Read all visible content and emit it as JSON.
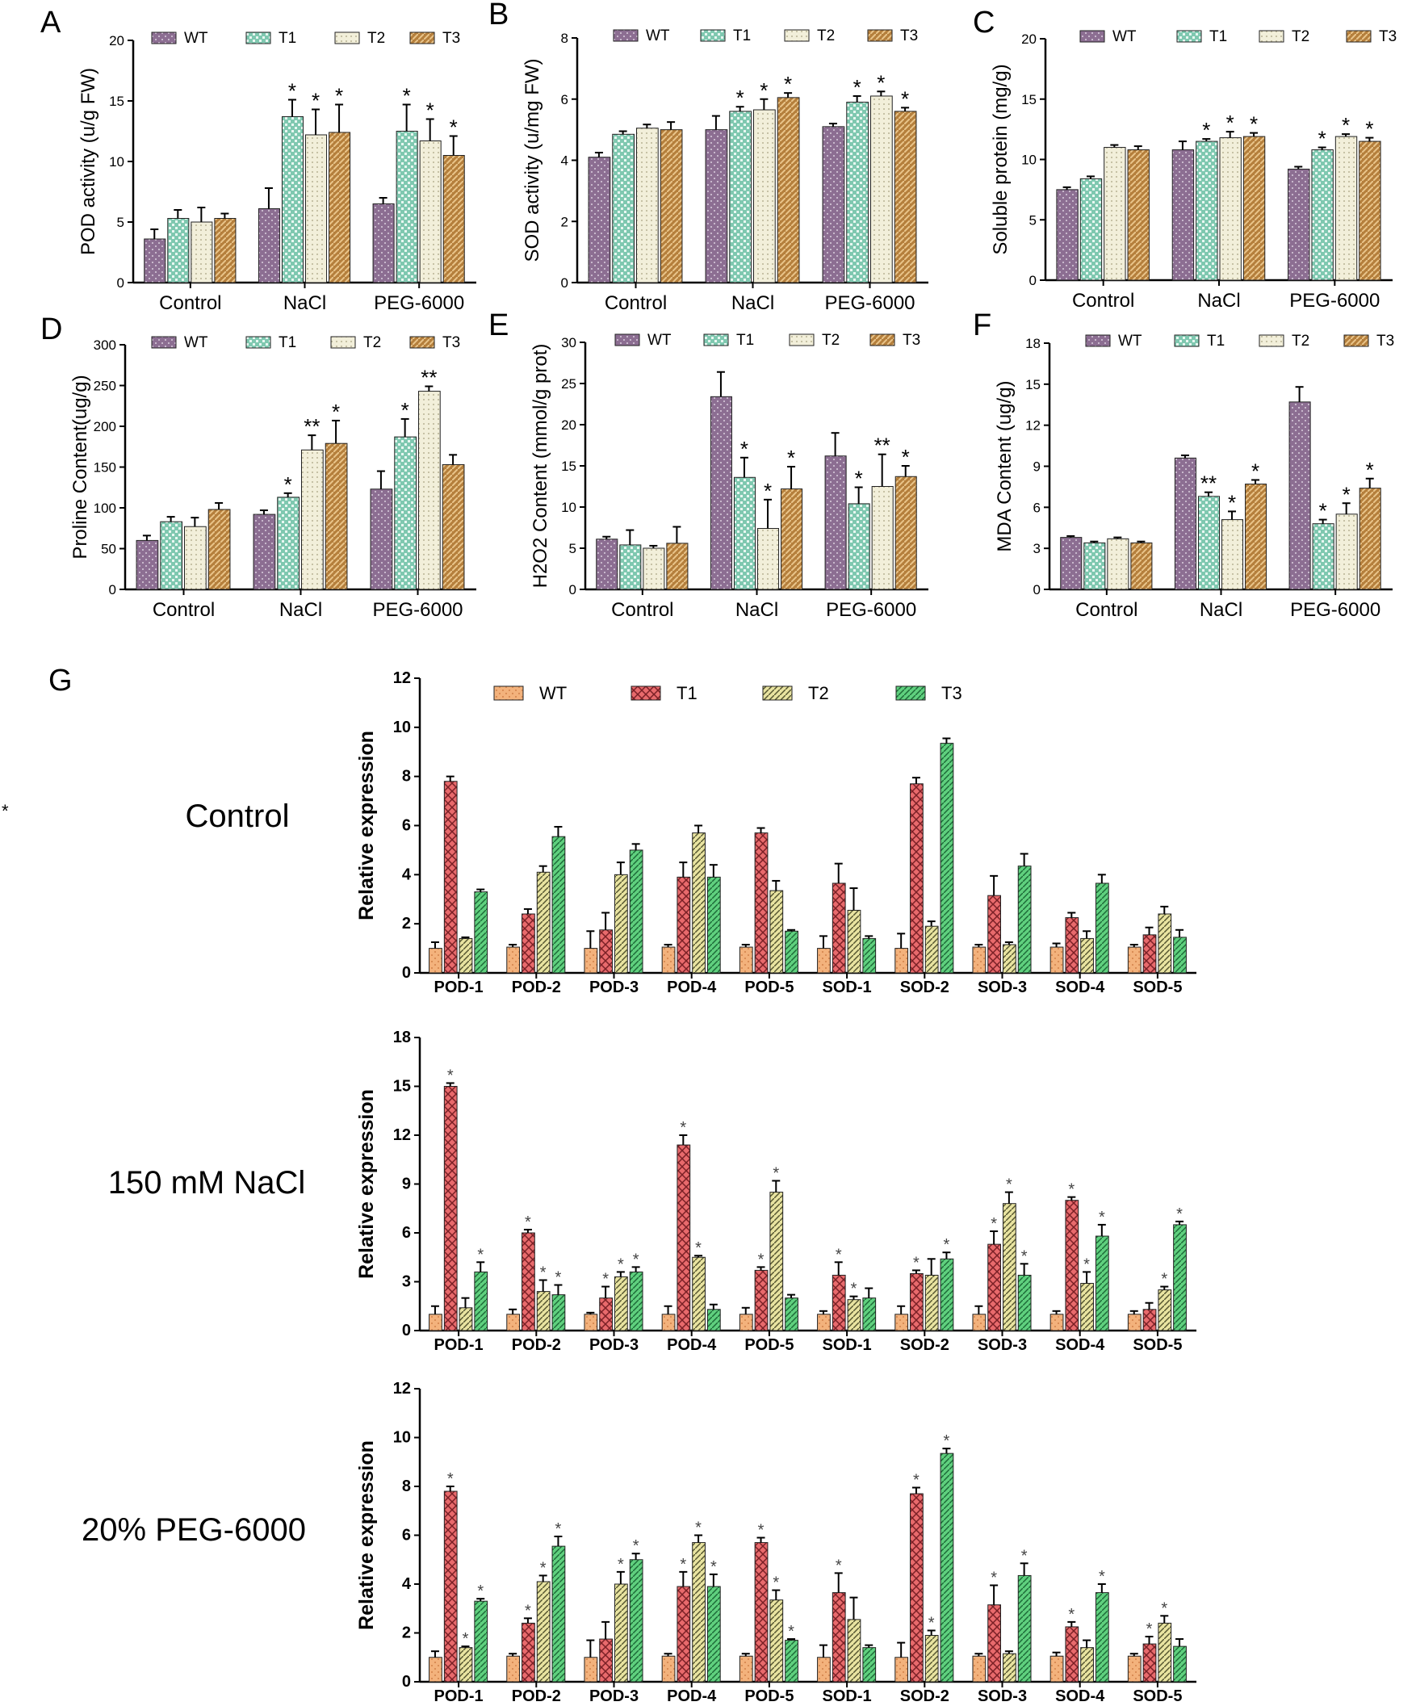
{
  "figure_note": "*",
  "conditions": [
    {
      "label": "Control"
    },
    {
      "label": "150 mM NaCl"
    },
    {
      "label": "20% PEG-6000"
    }
  ],
  "colors": {
    "WT": "#8c6e92",
    "T1": "#7fc8b0",
    "T2": "#f2efda",
    "T3": "#b57f3c",
    "gWT": "#f3b27c",
    "gT1": "#e86a6c",
    "gT2": "#e8e3a0",
    "gT3": "#5fd07e"
  },
  "chart_data": [
    {
      "id": "A",
      "panel_label": "A",
      "type": "bar",
      "ylabel": "POD activity (u/g FW)",
      "ylim": [
        0,
        20
      ],
      "yticks": [
        0,
        5,
        10,
        15,
        20
      ],
      "categories": [
        "Control",
        "NaCl",
        "PEG-6000"
      ],
      "series": [
        {
          "name": "WT",
          "values": [
            3.6,
            6.1,
            6.5
          ],
          "errors": [
            0.8,
            1.7,
            0.5
          ],
          "sig": [
            "",
            "",
            ""
          ]
        },
        {
          "name": "T1",
          "values": [
            5.3,
            13.7,
            12.5
          ],
          "errors": [
            0.7,
            1.4,
            2.2
          ],
          "sig": [
            "",
            "*",
            "*"
          ]
        },
        {
          "name": "T2",
          "values": [
            5.0,
            12.2,
            11.7
          ],
          "errors": [
            1.2,
            2.1,
            1.8
          ],
          "sig": [
            "",
            "*",
            "*"
          ]
        },
        {
          "name": "T3",
          "values": [
            5.3,
            12.4,
            10.5
          ],
          "errors": [
            0.4,
            2.3,
            1.6
          ],
          "sig": [
            "",
            "*",
            "*"
          ]
        }
      ]
    },
    {
      "id": "B",
      "panel_label": "B",
      "type": "bar",
      "ylabel": "SOD activity (u/mg FW)",
      "ylim": [
        0,
        8
      ],
      "yticks": [
        0,
        2,
        4,
        6,
        8
      ],
      "categories": [
        "Control",
        "NaCl",
        "PEG-6000"
      ],
      "series": [
        {
          "name": "WT",
          "values": [
            4.1,
            5.0,
            5.1
          ],
          "errors": [
            0.15,
            0.45,
            0.1
          ],
          "sig": [
            "",
            "",
            ""
          ]
        },
        {
          "name": "T1",
          "values": [
            4.85,
            5.6,
            5.9
          ],
          "errors": [
            0.1,
            0.15,
            0.2
          ],
          "sig": [
            "",
            "*",
            "*"
          ]
        },
        {
          "name": "T2",
          "values": [
            5.05,
            5.65,
            6.1
          ],
          "errors": [
            0.12,
            0.35,
            0.15
          ],
          "sig": [
            "",
            "*",
            "*"
          ]
        },
        {
          "name": "T3",
          "values": [
            5.0,
            6.05,
            5.6
          ],
          "errors": [
            0.25,
            0.15,
            0.12
          ],
          "sig": [
            "",
            "*",
            "*"
          ]
        }
      ]
    },
    {
      "id": "C",
      "panel_label": "C",
      "type": "bar",
      "ylabel": "Soluble protein (mg/g)",
      "ylim": [
        0,
        20
      ],
      "yticks": [
        0,
        5,
        10,
        15,
        20
      ],
      "categories": [
        "Control",
        "NaCl",
        "PEG-6000"
      ],
      "series": [
        {
          "name": "WT",
          "values": [
            7.5,
            10.8,
            9.2
          ],
          "errors": [
            0.2,
            0.7,
            0.2
          ],
          "sig": [
            "",
            "",
            ""
          ]
        },
        {
          "name": "T1",
          "values": [
            8.4,
            11.5,
            10.8
          ],
          "errors": [
            0.2,
            0.2,
            0.2
          ],
          "sig": [
            "",
            "*",
            "*"
          ]
        },
        {
          "name": "T2",
          "values": [
            11.0,
            11.8,
            11.9
          ],
          "errors": [
            0.2,
            0.5,
            0.2
          ],
          "sig": [
            "",
            "*",
            "*"
          ]
        },
        {
          "name": "T3",
          "values": [
            10.8,
            11.9,
            11.5
          ],
          "errors": [
            0.3,
            0.3,
            0.3
          ],
          "sig": [
            "",
            "*",
            "*"
          ]
        }
      ]
    },
    {
      "id": "D",
      "panel_label": "D",
      "type": "bar",
      "ylabel": "Proline Content(ug/g)",
      "ylim": [
        0,
        300
      ],
      "yticks": [
        0,
        50,
        100,
        150,
        200,
        250,
        300
      ],
      "categories": [
        "Control",
        "NaCl",
        "PEG-6000"
      ],
      "series": [
        {
          "name": "WT",
          "values": [
            60,
            92,
            123
          ],
          "errors": [
            6,
            5,
            22
          ],
          "sig": [
            "",
            "",
            ""
          ]
        },
        {
          "name": "T1",
          "values": [
            83,
            113,
            187
          ],
          "errors": [
            6,
            5,
            22
          ],
          "sig": [
            "",
            "*",
            "*"
          ]
        },
        {
          "name": "T2",
          "values": [
            77,
            171,
            243
          ],
          "errors": [
            11,
            18,
            6
          ],
          "sig": [
            "",
            "**",
            "**"
          ]
        },
        {
          "name": "T3",
          "values": [
            98,
            179,
            153
          ],
          "errors": [
            8,
            28,
            12
          ],
          "sig": [
            "",
            "*",
            ""
          ]
        }
      ]
    },
    {
      "id": "E",
      "panel_label": "E",
      "type": "bar",
      "ylabel": "H2O2 Content (mmol/g prot)",
      "ylim": [
        0,
        30
      ],
      "yticks": [
        0,
        5,
        10,
        15,
        20,
        25,
        30
      ],
      "categories": [
        "Control",
        "NaCl",
        "PEG-6000"
      ],
      "series": [
        {
          "name": "WT",
          "values": [
            6.1,
            23.4,
            16.2
          ],
          "errors": [
            0.3,
            3.0,
            2.8
          ],
          "sig": [
            "",
            "",
            ""
          ]
        },
        {
          "name": "T1",
          "values": [
            5.4,
            13.6,
            10.4
          ],
          "errors": [
            1.8,
            2.4,
            2.0
          ],
          "sig": [
            "",
            "*",
            "*"
          ]
        },
        {
          "name": "T2",
          "values": [
            5.0,
            7.4,
            12.5
          ],
          "errors": [
            0.3,
            3.5,
            3.9
          ],
          "sig": [
            "",
            "*",
            "**"
          ]
        },
        {
          "name": "T3",
          "values": [
            5.6,
            12.2,
            13.7
          ],
          "errors": [
            2.0,
            2.7,
            1.3
          ],
          "sig": [
            "",
            "*",
            "*"
          ]
        }
      ]
    },
    {
      "id": "F",
      "panel_label": "F",
      "type": "bar",
      "ylabel": "MDA Content (ug/g)",
      "ylim": [
        0,
        18
      ],
      "yticks": [
        0,
        3,
        6,
        9,
        12,
        15,
        18
      ],
      "categories": [
        "Control",
        "NaCl",
        "PEG-6000"
      ],
      "series": [
        {
          "name": "WT",
          "values": [
            3.8,
            9.6,
            13.7
          ],
          "errors": [
            0.1,
            0.2,
            1.1
          ],
          "sig": [
            "",
            "",
            ""
          ]
        },
        {
          "name": "T1",
          "values": [
            3.4,
            6.8,
            4.8
          ],
          "errors": [
            0.1,
            0.3,
            0.3
          ],
          "sig": [
            "",
            "**",
            "*"
          ]
        },
        {
          "name": "T2",
          "values": [
            3.7,
            5.1,
            5.5
          ],
          "errors": [
            0.1,
            0.6,
            0.8
          ],
          "sig": [
            "",
            "*",
            "*"
          ]
        },
        {
          "name": "T3",
          "values": [
            3.4,
            7.7,
            7.4
          ],
          "errors": [
            0.1,
            0.3,
            0.7
          ],
          "sig": [
            "",
            "*",
            "*"
          ]
        }
      ]
    },
    {
      "id": "G-control",
      "panel_label": "G",
      "type": "bar",
      "ylabel": "Relative expression",
      "ylim": [
        0,
        12
      ],
      "yticks": [
        0,
        2,
        4,
        6,
        8,
        10,
        12
      ],
      "categories": [
        "POD-1",
        "POD-2",
        "POD-3",
        "POD-4",
        "POD-5",
        "SOD-1",
        "SOD-2",
        "SOD-3",
        "SOD-4",
        "SOD-5"
      ],
      "series": [
        {
          "name": "WT",
          "values": [
            1.0,
            1.05,
            1.0,
            1.05,
            1.05,
            1.0,
            1.0,
            1.05,
            1.05,
            1.05
          ],
          "errors": [
            0.25,
            0.1,
            0.7,
            0.1,
            0.1,
            0.5,
            0.6,
            0.1,
            0.15,
            0.1
          ],
          "sig": [
            "",
            "",
            "",
            "",
            "",
            "",
            "",
            "",
            "",
            ""
          ]
        },
        {
          "name": "T1",
          "values": [
            7.8,
            2.4,
            1.75,
            3.9,
            5.7,
            3.65,
            7.7,
            3.15,
            2.25,
            1.55
          ],
          "errors": [
            0.2,
            0.2,
            0.7,
            0.6,
            0.2,
            0.8,
            0.25,
            0.8,
            0.2,
            0.3
          ],
          "sig": [
            "",
            "",
            "",
            "",
            "",
            "",
            "",
            "",
            "",
            ""
          ]
        },
        {
          "name": "T2",
          "values": [
            1.4,
            4.1,
            4.0,
            5.7,
            3.35,
            2.55,
            1.9,
            1.15,
            1.4,
            2.4
          ],
          "errors": [
            0.05,
            0.25,
            0.5,
            0.3,
            0.4,
            0.9,
            0.2,
            0.1,
            0.3,
            0.3
          ],
          "sig": [
            "",
            "",
            "",
            "",
            "",
            "",
            "",
            "",
            "",
            ""
          ]
        },
        {
          "name": "T3",
          "values": [
            3.3,
            5.55,
            5.0,
            3.9,
            1.7,
            1.4,
            9.35,
            4.35,
            3.65,
            1.45
          ],
          "errors": [
            0.1,
            0.4,
            0.25,
            0.5,
            0.05,
            0.1,
            0.2,
            0.5,
            0.35,
            0.3
          ],
          "sig": [
            "",
            "",
            "",
            "",
            "",
            "",
            "",
            "",
            "",
            ""
          ]
        }
      ]
    },
    {
      "id": "G-nacl",
      "panel_label": "",
      "type": "bar",
      "ylabel": "Relative expression",
      "ylim": [
        0,
        18
      ],
      "yticks": [
        0,
        3,
        6,
        9,
        12,
        15,
        18
      ],
      "categories": [
        "POD-1",
        "POD-2",
        "POD-3",
        "POD-4",
        "POD-5",
        "SOD-1",
        "SOD-2",
        "SOD-3",
        "SOD-4",
        "SOD-5"
      ],
      "series": [
        {
          "name": "WT",
          "values": [
            1.0,
            1.0,
            1.0,
            1.0,
            1.0,
            1.0,
            1.0,
            1.0,
            1.0,
            1.0
          ],
          "errors": [
            0.5,
            0.3,
            0.1,
            0.5,
            0.4,
            0.2,
            0.5,
            0.5,
            0.2,
            0.2
          ],
          "sig": [
            "",
            "",
            "",
            "",
            "",
            "",
            "",
            "",
            "",
            ""
          ]
        },
        {
          "name": "T1",
          "values": [
            15.0,
            6.0,
            2.0,
            11.4,
            3.7,
            3.4,
            3.5,
            5.3,
            8.0,
            1.3
          ],
          "errors": [
            0.2,
            0.2,
            0.7,
            0.6,
            0.2,
            0.8,
            0.2,
            0.8,
            0.2,
            0.4
          ],
          "sig": [
            "*",
            "*",
            "*",
            "*",
            "*",
            "*",
            "*",
            "*",
            "*",
            ""
          ]
        },
        {
          "name": "T2",
          "values": [
            1.4,
            2.4,
            3.3,
            4.5,
            8.5,
            1.9,
            3.4,
            7.8,
            2.9,
            2.5
          ],
          "errors": [
            0.6,
            0.7,
            0.3,
            0.1,
            0.7,
            0.2,
            1.0,
            0.7,
            0.7,
            0.2
          ],
          "sig": [
            "",
            "*",
            "*",
            "*",
            "*",
            "*",
            "",
            "*",
            "*",
            "*"
          ]
        },
        {
          "name": "T3",
          "values": [
            3.6,
            2.2,
            3.6,
            1.3,
            2.0,
            2.0,
            4.4,
            3.4,
            5.8,
            6.5
          ],
          "errors": [
            0.6,
            0.6,
            0.3,
            0.3,
            0.2,
            0.6,
            0.4,
            0.7,
            0.7,
            0.2
          ],
          "sig": [
            "*",
            "*",
            "*",
            "",
            "",
            "",
            "*",
            "*",
            "*",
            "*"
          ]
        }
      ]
    },
    {
      "id": "G-peg",
      "panel_label": "",
      "type": "bar",
      "ylabel": "Relative expression",
      "ylim": [
        0,
        12
      ],
      "yticks": [
        0,
        2,
        4,
        6,
        8,
        10,
        12
      ],
      "categories": [
        "POD-1",
        "POD-2",
        "POD-3",
        "POD-4",
        "POD-5",
        "SOD-1",
        "SOD-2",
        "SOD-3",
        "SOD-4",
        "SOD-5"
      ],
      "series": [
        {
          "name": "WT",
          "values": [
            1.0,
            1.05,
            1.0,
            1.05,
            1.05,
            1.0,
            1.0,
            1.05,
            1.05,
            1.05
          ],
          "errors": [
            0.25,
            0.1,
            0.7,
            0.1,
            0.1,
            0.5,
            0.6,
            0.1,
            0.15,
            0.1
          ],
          "sig": [
            "",
            "",
            "",
            "",
            "",
            "",
            "",
            "",
            "",
            ""
          ]
        },
        {
          "name": "T1",
          "values": [
            7.8,
            2.4,
            1.75,
            3.9,
            5.7,
            3.65,
            7.7,
            3.15,
            2.25,
            1.55
          ],
          "errors": [
            0.2,
            0.2,
            0.7,
            0.6,
            0.2,
            0.8,
            0.25,
            0.8,
            0.2,
            0.3
          ],
          "sig": [
            "*",
            "*",
            "",
            "*",
            "*",
            "*",
            "*",
            "*",
            "*",
            "*"
          ]
        },
        {
          "name": "T2",
          "values": [
            1.4,
            4.1,
            4.0,
            5.7,
            3.35,
            2.55,
            1.9,
            1.15,
            1.4,
            2.4
          ],
          "errors": [
            0.05,
            0.25,
            0.5,
            0.3,
            0.4,
            0.9,
            0.2,
            0.1,
            0.3,
            0.3
          ],
          "sig": [
            "*",
            "*",
            "*",
            "*",
            "*",
            "",
            "*",
            "",
            "",
            "*"
          ]
        },
        {
          "name": "T3",
          "values": [
            3.3,
            5.55,
            5.0,
            3.9,
            1.7,
            1.4,
            9.35,
            4.35,
            3.65,
            1.45
          ],
          "errors": [
            0.1,
            0.4,
            0.25,
            0.5,
            0.05,
            0.1,
            0.2,
            0.5,
            0.35,
            0.3
          ],
          "sig": [
            "*",
            "*",
            "*",
            "*",
            "*",
            "",
            "*",
            "*",
            "*",
            ""
          ]
        }
      ]
    }
  ]
}
